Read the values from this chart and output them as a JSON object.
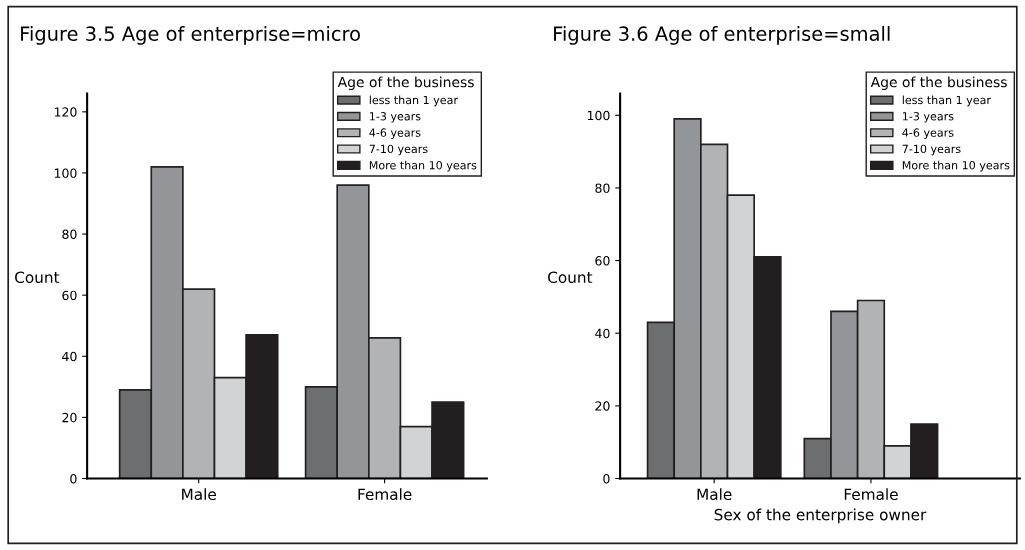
{
  "chart_data": [
    {
      "type": "bar",
      "title": "Figure 3.5 Age of enterprise=micro",
      "ylabel": "Count",
      "categories": [
        "Male",
        "Female"
      ],
      "legend_title": "Age of the business",
      "legend": "top right",
      "ylim": [
        0,
        126
      ],
      "yticks": [
        0,
        20,
        40,
        60,
        80,
        100,
        120
      ],
      "series": [
        {
          "name": "less than 1 year",
          "color": "#6d6e70",
          "values": [
            29,
            30
          ]
        },
        {
          "name": "1-3 years",
          "color": "#939598",
          "values": [
            102,
            96
          ]
        },
        {
          "name": "4-6 years",
          "color": "#b1b3b5",
          "values": [
            62,
            46
          ]
        },
        {
          "name": "7-10 years",
          "color": "#d1d3d4",
          "values": [
            33,
            17
          ]
        },
        {
          "name": "More than 10 years",
          "color": "#231f20",
          "values": [
            47,
            25
          ]
        }
      ]
    },
    {
      "type": "bar",
      "title": "Figure 3.6 Age of enterprise=small",
      "ylabel": "Count",
      "xlabel": "Sex of the enterprise owner",
      "categories": [
        "Male",
        "Female"
      ],
      "legend_title": "Age of the business",
      "legend": "top right",
      "ylim": [
        0,
        106
      ],
      "yticks": [
        0,
        20,
        40,
        60,
        80,
        100
      ],
      "series": [
        {
          "name": "less than 1 year",
          "color": "#6d6e70",
          "values": [
            43,
            11
          ]
        },
        {
          "name": "1-3 years",
          "color": "#939598",
          "values": [
            99,
            46
          ]
        },
        {
          "name": "4-6 years",
          "color": "#b1b3b5",
          "values": [
            92,
            49
          ]
        },
        {
          "name": "7-10 years",
          "color": "#d1d3d4",
          "values": [
            78,
            9
          ]
        },
        {
          "name": "More than 10 years",
          "color": "#231f20",
          "values": [
            61,
            15
          ]
        }
      ]
    }
  ]
}
